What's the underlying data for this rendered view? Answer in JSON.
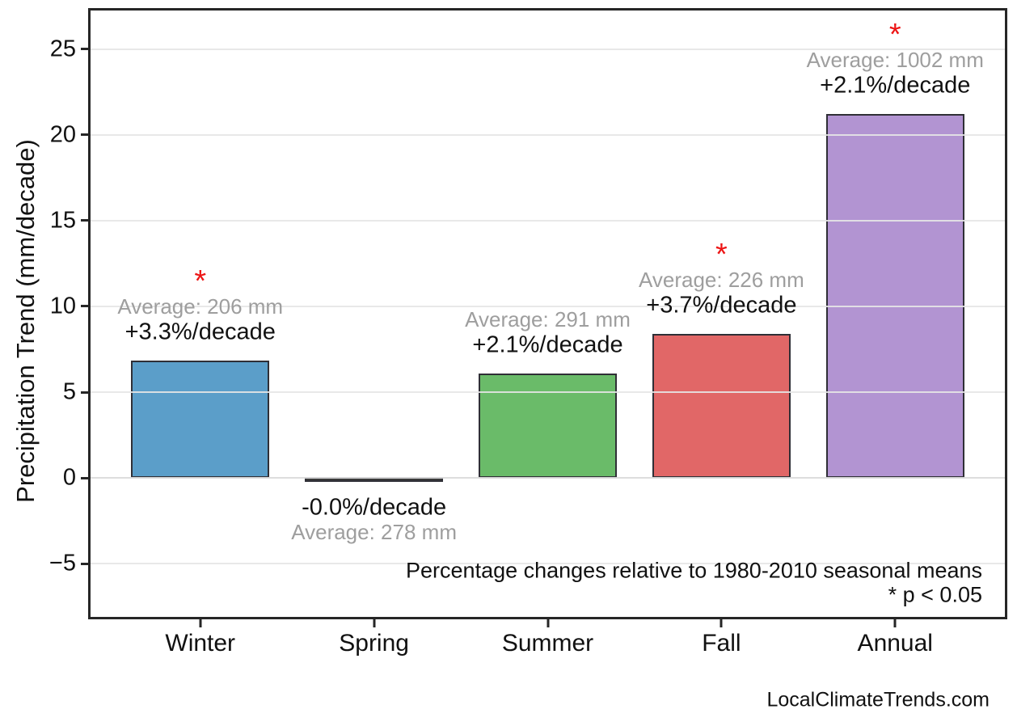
{
  "watermark": "LocalClimateTrends.com",
  "colors": {
    "bar_edge": "#2f2f36",
    "axis": "#262626",
    "gridline": "#e5e5e5",
    "zero_line": "#8a8a8a",
    "average_text": "#9e9e9e",
    "percent_text": "#111111",
    "star": "#ed1515",
    "winter_bar": "#5b9ec9",
    "spring_bar": "#3a3a3a",
    "summer_bar": "#6abb69",
    "fall_bar": "#e16767",
    "annual_bar": "#b294d2"
  },
  "chart_data": {
    "type": "bar",
    "title": "",
    "xlabel": "",
    "ylabel": "Precipitation Trend (mm/decade)",
    "ylim": [
      -8.1,
      27.25
    ],
    "yticks": [
      -5,
      0,
      5,
      10,
      15,
      20,
      25
    ],
    "ytick_labels": [
      "−5",
      "0",
      "5",
      "10",
      "15",
      "20",
      "25"
    ],
    "grid": true,
    "legend": false,
    "categories": [
      "Winter",
      "Spring",
      "Summer",
      "Fall",
      "Annual"
    ],
    "values": [
      6.85,
      -0.06,
      6.1,
      8.4,
      21.2
    ],
    "bar_colors": [
      "#5b9ec9",
      "#3a3a3a",
      "#6abb69",
      "#e16767",
      "#b294d2"
    ],
    "bars": [
      {
        "category": "Winter",
        "trend_mm_per_decade": 6.85,
        "average_label": "Average: 206 mm",
        "percent_label": "+3.3%/decade",
        "significant": true
      },
      {
        "category": "Spring",
        "trend_mm_per_decade": -0.06,
        "average_label": "Average: 278 mm",
        "percent_label": "-0.0%/decade",
        "significant": false
      },
      {
        "category": "Summer",
        "trend_mm_per_decade": 6.1,
        "average_label": "Average: 291 mm",
        "percent_label": "+2.1%/decade",
        "significant": false
      },
      {
        "category": "Fall",
        "trend_mm_per_decade": 8.4,
        "average_label": "Average: 226 mm",
        "percent_label": "+3.7%/decade",
        "significant": true
      },
      {
        "category": "Annual",
        "trend_mm_per_decade": 21.2,
        "average_label": "Average: 1002 mm",
        "percent_label": "+2.1%/decade",
        "significant": true
      }
    ],
    "note": "Percentage changes relative to 1980-2010 seasonal means",
    "significance_note": "* p < 0.05",
    "star_symbol": "*"
  }
}
